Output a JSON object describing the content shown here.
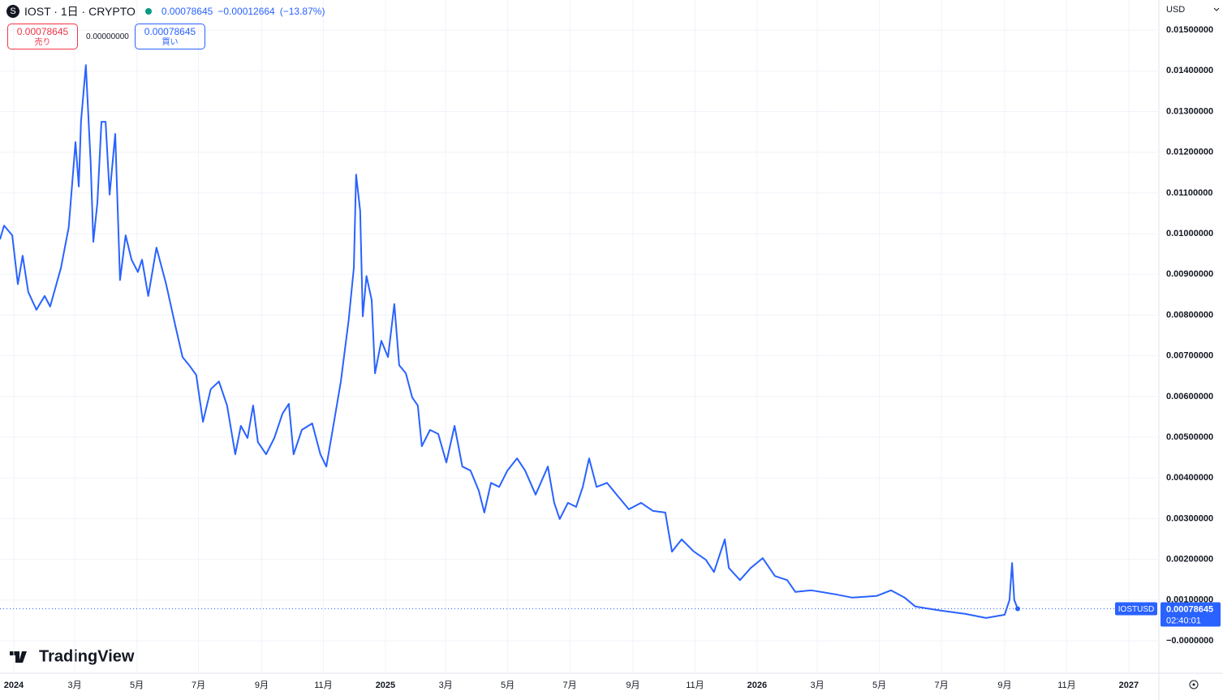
{
  "header": {
    "symbol": "IOST · 1日 · CRYPTO",
    "last": "0.00078645",
    "change": "−0.00012664",
    "change_pct": "(−13.87%)",
    "sell_price": "0.00078645",
    "sell_label": "売り",
    "spread": "0.00000000",
    "buy_price": "0.00078645",
    "buy_label": "買い",
    "currency": "USD",
    "badge_symbol": "IOSTUSD",
    "badge_price": "0.00078645",
    "countdown": "02:40:01",
    "logo": "TradingView"
  },
  "chart_data": {
    "type": "line",
    "x": [
      2023.963,
      2023.974,
      2023.996,
      2024.011,
      2024.024,
      2024.039,
      2024.061,
      2024.083,
      2024.098,
      2024.127,
      2024.148,
      2024.166,
      2024.175,
      2024.181,
      2024.194,
      2024.207,
      2024.214,
      2024.225,
      2024.236,
      2024.247,
      2024.258,
      2024.273,
      2024.286,
      2024.301,
      2024.317,
      2024.334,
      2024.345,
      2024.362,
      2024.384,
      2024.41,
      2024.434,
      2024.454,
      2024.472,
      2024.491,
      2024.509,
      2024.53,
      2024.552,
      2024.574,
      2024.596,
      2024.611,
      2024.629,
      2024.644,
      2024.657,
      2024.679,
      2024.701,
      2024.723,
      2024.74,
      2024.753,
      2024.775,
      2024.803,
      2024.825,
      2024.841,
      2024.858,
      2024.88,
      2024.901,
      2024.915,
      2024.921,
      2024.932,
      2024.939,
      2024.949,
      2024.963,
      2024.972,
      2024.989,
      2025.007,
      2025.024,
      2025.037,
      2025.055,
      2025.072,
      2025.087,
      2025.098,
      2025.12,
      2025.142,
      2025.164,
      2025.186,
      2025.207,
      2025.229,
      2025.251,
      2025.266,
      2025.284,
      2025.306,
      2025.328,
      2025.354,
      2025.376,
      2025.404,
      2025.437,
      2025.454,
      2025.469,
      2025.491,
      2025.513,
      2025.531,
      2025.548,
      2025.568,
      2025.596,
      2025.622,
      2025.655,
      2025.688,
      2025.72,
      2025.753,
      2025.771,
      2025.797,
      2025.83,
      2025.862,
      2025.884,
      2025.913,
      2025.924,
      2025.954,
      2025.983,
      2026.015,
      2026.048,
      2026.081,
      2026.103,
      2026.146,
      2026.212,
      2026.256,
      2026.321,
      2026.36,
      2026.397,
      2026.426,
      2026.496,
      2026.561,
      2026.616,
      2026.666,
      2026.679,
      2026.686,
      2026.692,
      2026.701
    ],
    "series": [
      {
        "name": "IOSTUSD",
        "color": "#2962ff",
        "values": [
          0.00986,
          0.0102,
          0.00996,
          0.00876,
          0.00946,
          0.00857,
          0.00813,
          0.00847,
          0.00821,
          0.00916,
          0.01016,
          0.01225,
          0.01116,
          0.01275,
          0.01414,
          0.01175,
          0.0098,
          0.01076,
          0.01275,
          0.01275,
          0.01096,
          0.01245,
          0.00886,
          0.00996,
          0.00936,
          0.00906,
          0.00936,
          0.00847,
          0.00966,
          0.00876,
          0.00777,
          0.00697,
          0.00677,
          0.00653,
          0.00538,
          0.00618,
          0.00637,
          0.00578,
          0.00458,
          0.00528,
          0.00498,
          0.00578,
          0.00488,
          0.00458,
          0.00498,
          0.00558,
          0.00582,
          0.00458,
          0.00518,
          0.00534,
          0.00458,
          0.00428,
          0.00518,
          0.00637,
          0.00787,
          0.00916,
          0.01145,
          0.01056,
          0.00797,
          0.00896,
          0.00837,
          0.00657,
          0.00737,
          0.00697,
          0.00827,
          0.00677,
          0.00657,
          0.00598,
          0.00578,
          0.00478,
          0.00518,
          0.00508,
          0.00438,
          0.00528,
          0.00428,
          0.00418,
          0.00369,
          0.00315,
          0.00388,
          0.00378,
          0.00418,
          0.00448,
          0.00418,
          0.00359,
          0.00428,
          0.00339,
          0.00299,
          0.00339,
          0.00329,
          0.00378,
          0.00448,
          0.00378,
          0.00388,
          0.00359,
          0.00323,
          0.00339,
          0.00319,
          0.00315,
          0.00219,
          0.00249,
          0.00219,
          0.00199,
          0.00169,
          0.00249,
          0.00179,
          0.00149,
          0.00179,
          0.00203,
          0.00159,
          0.00149,
          0.0012,
          0.00124,
          0.00114,
          0.00106,
          0.0011,
          0.00124,
          0.00106,
          0.00084,
          0.00074,
          0.00066,
          0.00056,
          0.00064,
          0.001,
          0.00191,
          0.001,
          0.00078645
        ]
      }
    ],
    "xlim": [
      2023.963,
      2027.081
    ],
    "ylim": [
      -0.000797,
      0.01574
    ],
    "grid": true,
    "xticks": [
      {
        "value": 2024.0,
        "label": "2024"
      },
      {
        "value": 2024.164,
        "label": "3月"
      },
      {
        "value": 2024.331,
        "label": "5月"
      },
      {
        "value": 2024.497,
        "label": "7月"
      },
      {
        "value": 2024.667,
        "label": "9月"
      },
      {
        "value": 2024.833,
        "label": "11月"
      },
      {
        "value": 2025.0,
        "label": "2025"
      },
      {
        "value": 2025.162,
        "label": "3月"
      },
      {
        "value": 2025.329,
        "label": "5月"
      },
      {
        "value": 2025.496,
        "label": "7月"
      },
      {
        "value": 2025.666,
        "label": "9月"
      },
      {
        "value": 2025.833,
        "label": "11月"
      },
      {
        "value": 2026.0,
        "label": "2026"
      },
      {
        "value": 2026.162,
        "label": "3月"
      },
      {
        "value": 2026.329,
        "label": "5月"
      },
      {
        "value": 2026.496,
        "label": "7月"
      },
      {
        "value": 2026.666,
        "label": "9月"
      },
      {
        "value": 2026.833,
        "label": "11月"
      },
      {
        "value": 2027.0,
        "label": "2027"
      }
    ],
    "yticks": [
      {
        "value": 0,
        "label": "−0.0000000"
      },
      {
        "value": 0.001,
        "label": "0.00100000"
      },
      {
        "value": 0.002,
        "label": "0.00200000"
      },
      {
        "value": 0.003,
        "label": "0.00300000"
      },
      {
        "value": 0.004,
        "label": "0.00400000"
      },
      {
        "value": 0.005,
        "label": "0.00500000"
      },
      {
        "value": 0.006,
        "label": "0.00600000"
      },
      {
        "value": 0.007,
        "label": "0.00700000"
      },
      {
        "value": 0.008,
        "label": "0.00800000"
      },
      {
        "value": 0.009,
        "label": "0.00900000"
      },
      {
        "value": 0.01,
        "label": "0.01000000"
      },
      {
        "value": 0.011,
        "label": "0.01100000"
      },
      {
        "value": 0.012,
        "label": "0.01200000"
      },
      {
        "value": 0.013,
        "label": "0.01300000"
      },
      {
        "value": 0.014,
        "label": "0.01400000"
      },
      {
        "value": 0.015,
        "label": "0.01500000"
      }
    ]
  }
}
